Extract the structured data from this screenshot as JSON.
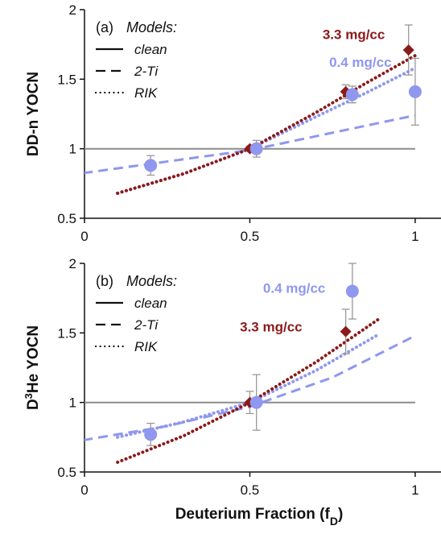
{
  "colors": {
    "dark_red": "#8b1a1a",
    "light_blue": "#8f97ef",
    "gray": "#8c8c8c",
    "error_bar": "#999999",
    "axis": "#111111"
  },
  "xlabel_main": "Deuterium Fraction (f",
  "xlabel_sub": "D",
  "xlabel_close": ")",
  "chart_data": [
    {
      "type": "scatter",
      "panel_label": "(a)",
      "ylabel": "DD-n YOCN",
      "ylabel_parts": {
        "pre": "",
        "sup": "",
        "post": "DD-n YOCN"
      },
      "xlim": [
        0,
        1.1
      ],
      "ylim": [
        0.5,
        2
      ],
      "xticks": [
        "0",
        "0.5",
        "1"
      ],
      "yticks": [
        "0.5",
        "1",
        "1.5",
        "2"
      ],
      "grid": false,
      "legend_title": "Models:",
      "legend": [
        {
          "style": "solid",
          "label": "clean"
        },
        {
          "style": "dashed",
          "label": "2-Ti"
        },
        {
          "style": "dotted",
          "label": "RIK"
        }
      ],
      "annotations": [
        {
          "text": "3.3 mg/cc",
          "color": "dark_red",
          "x": 0.72,
          "y": 1.79
        },
        {
          "text": "0.4 mg/cc",
          "color": "light_blue",
          "x": 0.74,
          "y": 1.59
        }
      ],
      "series": [
        {
          "kind": "markers",
          "marker": "diamond",
          "color": "dark_red",
          "points": [
            {
              "x": 0.5,
              "y": 1.0,
              "err": 0.02
            },
            {
              "x": 0.79,
              "y": 1.41,
              "err": 0.05
            },
            {
              "x": 0.98,
              "y": 1.71,
              "err": 0.18
            }
          ]
        },
        {
          "kind": "markers",
          "marker": "circle",
          "color": "light_blue",
          "points": [
            {
              "x": 0.2,
              "y": 0.88,
              "err": 0.07
            },
            {
              "x": 0.52,
              "y": 1.0,
              "err": 0.06
            },
            {
              "x": 0.81,
              "y": 1.39,
              "err": 0.06
            },
            {
              "x": 1.0,
              "y": 1.41,
              "err": 0.24
            }
          ]
        },
        {
          "kind": "line",
          "style": "solid",
          "color": "gray",
          "points": [
            {
              "x": 0.0,
              "y": 1.0
            },
            {
              "x": 1.0,
              "y": 1.0
            }
          ]
        },
        {
          "kind": "line",
          "style": "dashed",
          "color": "light_blue",
          "points": [
            {
              "x": -0.05,
              "y": 0.81
            },
            {
              "x": 0.5,
              "y": 0.99
            },
            {
              "x": 1.0,
              "y": 1.24
            }
          ]
        },
        {
          "kind": "line",
          "style": "dotted",
          "color": "light_blue",
          "points": [
            {
              "x": 0.1,
              "y": 0.68
            },
            {
              "x": 0.3,
              "y": 0.82
            },
            {
              "x": 0.5,
              "y": 1.0
            },
            {
              "x": 0.7,
              "y": 1.23
            },
            {
              "x": 0.85,
              "y": 1.4
            },
            {
              "x": 1.0,
              "y": 1.58
            }
          ]
        },
        {
          "kind": "line",
          "style": "dotted",
          "color": "dark_red",
          "points": [
            {
              "x": 0.1,
              "y": 0.68
            },
            {
              "x": 0.3,
              "y": 0.82
            },
            {
              "x": 0.5,
              "y": 1.0
            },
            {
              "x": 0.7,
              "y": 1.26
            },
            {
              "x": 0.85,
              "y": 1.47
            },
            {
              "x": 1.0,
              "y": 1.67
            }
          ]
        }
      ]
    },
    {
      "type": "scatter",
      "panel_label": "(b)",
      "ylabel": "D3He YOCN",
      "ylabel_parts": {
        "pre": "D",
        "sup": "3",
        "post": "He YOCN"
      },
      "xlim": [
        0,
        1.1
      ],
      "ylim": [
        0.5,
        2
      ],
      "xticks": [
        "0",
        "0.5",
        "1"
      ],
      "yticks": [
        "0.5",
        "1",
        "1.5",
        "2"
      ],
      "grid": false,
      "legend_title": "Models:",
      "legend": [
        {
          "style": "solid",
          "label": "clean"
        },
        {
          "style": "dashed",
          "label": "2-Ti"
        },
        {
          "style": "dotted",
          "label": "RIK"
        }
      ],
      "annotations": [
        {
          "text": "0.4 mg/cc",
          "color": "light_blue",
          "x": 0.54,
          "y": 1.79
        },
        {
          "text": "3.3 mg/cc",
          "color": "dark_red",
          "x": 0.47,
          "y": 1.51
        }
      ],
      "series": [
        {
          "kind": "markers",
          "marker": "diamond",
          "color": "dark_red",
          "points": [
            {
              "x": 0.5,
              "y": 1.0,
              "err": 0.08
            },
            {
              "x": 0.79,
              "y": 1.51,
              "err": 0.16
            }
          ]
        },
        {
          "kind": "markers",
          "marker": "circle",
          "color": "light_blue",
          "points": [
            {
              "x": 0.2,
              "y": 0.77,
              "err": 0.08
            },
            {
              "x": 0.52,
              "y": 1.0,
              "err": 0.2
            },
            {
              "x": 0.81,
              "y": 1.8,
              "err": 0.2
            }
          ]
        },
        {
          "kind": "line",
          "style": "solid",
          "color": "gray",
          "points": [
            {
              "x": 0.0,
              "y": 1.0
            },
            {
              "x": 1.0,
              "y": 1.0
            }
          ]
        },
        {
          "kind": "line",
          "style": "dashed",
          "color": "light_blue",
          "points": [
            {
              "x": -0.05,
              "y": 0.71
            },
            {
              "x": 0.25,
              "y": 0.83
            },
            {
              "x": 0.5,
              "y": 0.97
            },
            {
              "x": 0.75,
              "y": 1.18
            },
            {
              "x": 1.0,
              "y": 1.48
            }
          ]
        },
        {
          "kind": "line",
          "style": "dotted",
          "color": "light_blue",
          "points": [
            {
              "x": 0.1,
              "y": 0.75
            },
            {
              "x": 0.3,
              "y": 0.86
            },
            {
              "x": 0.5,
              "y": 1.0
            },
            {
              "x": 0.7,
              "y": 1.23
            },
            {
              "x": 0.89,
              "y": 1.49
            }
          ]
        },
        {
          "kind": "line",
          "style": "dotted",
          "color": "dark_red",
          "points": [
            {
              "x": 0.1,
              "y": 0.57
            },
            {
              "x": 0.3,
              "y": 0.76
            },
            {
              "x": 0.5,
              "y": 1.0
            },
            {
              "x": 0.7,
              "y": 1.29
            },
            {
              "x": 0.89,
              "y": 1.6
            }
          ]
        }
      ]
    }
  ]
}
